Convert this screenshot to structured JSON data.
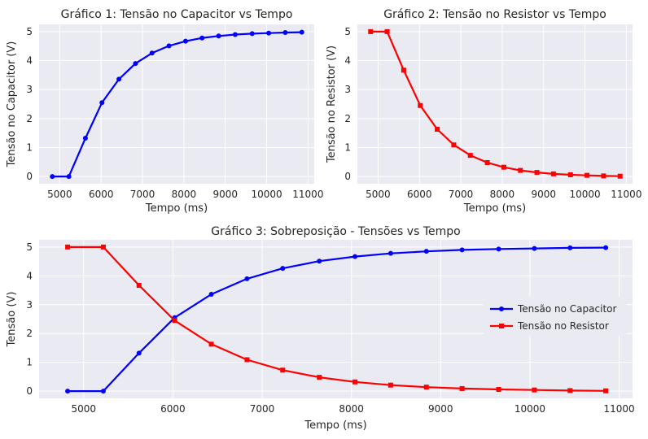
{
  "chart_data": [
    {
      "type": "line",
      "title": "Gráfico 1: Tensão no Capacitor vs Tempo",
      "xlabel": "Tempo (ms)",
      "ylabel": "Tensão no Capacitor (V)",
      "xlim": [
        4500,
        11150
      ],
      "ylim": [
        -0.25,
        5.25
      ],
      "xticks": [
        5000,
        6000,
        7000,
        8000,
        9000,
        10000,
        11000
      ],
      "yticks": [
        0,
        1,
        2,
        3,
        4,
        5
      ],
      "grid": true,
      "series": [
        {
          "color": "#0000ff",
          "marker": "circle",
          "x": [
            4820,
            5220,
            5620,
            6020,
            6430,
            6830,
            7230,
            7640,
            8040,
            8440,
            8840,
            9240,
            9650,
            10050,
            10450,
            10850
          ],
          "y": [
            0,
            0,
            1.32,
            2.55,
            3.36,
            3.9,
            4.26,
            4.51,
            4.67,
            4.78,
            4.85,
            4.9,
            4.93,
            4.95,
            4.97,
            4.98
          ]
        }
      ]
    },
    {
      "type": "line",
      "title": "Gráfico 2: Tensão no Resistor vs Tempo",
      "xlabel": "Tempo (ms)",
      "ylabel": "Tensão no Resistor (V)",
      "xlim": [
        4500,
        11150
      ],
      "ylim": [
        -0.25,
        5.25
      ],
      "xticks": [
        5000,
        6000,
        7000,
        8000,
        9000,
        10000,
        11000
      ],
      "yticks": [
        0,
        1,
        2,
        3,
        4,
        5
      ],
      "grid": true,
      "series": [
        {
          "color": "#ff0000",
          "marker": "square",
          "x": [
            4820,
            5220,
            5620,
            6020,
            6430,
            6830,
            7230,
            7640,
            8040,
            8440,
            8840,
            9240,
            9650,
            10050,
            10450,
            10850
          ],
          "y": [
            5,
            5,
            3.67,
            2.45,
            1.63,
            1.09,
            0.73,
            0.48,
            0.32,
            0.21,
            0.14,
            0.09,
            0.06,
            0.04,
            0.02,
            0.01
          ]
        }
      ]
    },
    {
      "type": "line",
      "title": "Gráfico 3: Sobreposição - Tensões vs Tempo",
      "xlabel": "Tempo (ms)",
      "ylabel": "Tensão (V)",
      "xlim": [
        4500,
        11150
      ],
      "ylim": [
        -0.25,
        5.25
      ],
      "xticks": [
        5000,
        6000,
        7000,
        8000,
        9000,
        10000,
        11000
      ],
      "yticks": [
        0,
        1,
        2,
        3,
        4,
        5
      ],
      "grid": true,
      "legend": "center-right",
      "series": [
        {
          "name": "Tensão no Capacitor",
          "color": "#0000ff",
          "marker": "circle",
          "x": [
            4820,
            5220,
            5620,
            6020,
            6430,
            6830,
            7230,
            7640,
            8040,
            8440,
            8840,
            9240,
            9650,
            10050,
            10450,
            10850
          ],
          "y": [
            0,
            0,
            1.32,
            2.55,
            3.36,
            3.9,
            4.26,
            4.51,
            4.67,
            4.78,
            4.85,
            4.9,
            4.93,
            4.95,
            4.97,
            4.98
          ]
        },
        {
          "name": "Tensão no Resistor",
          "color": "#ff0000",
          "marker": "square",
          "x": [
            4820,
            5220,
            5620,
            6020,
            6430,
            6830,
            7230,
            7640,
            8040,
            8440,
            8840,
            9240,
            9650,
            10050,
            10450,
            10850
          ],
          "y": [
            5,
            5,
            3.67,
            2.45,
            1.63,
            1.09,
            0.73,
            0.48,
            0.32,
            0.21,
            0.14,
            0.09,
            0.06,
            0.04,
            0.02,
            0.01
          ]
        }
      ]
    }
  ]
}
